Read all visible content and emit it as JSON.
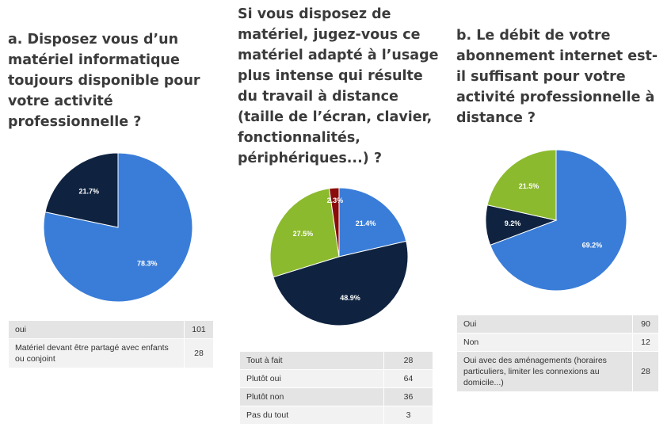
{
  "colors": {
    "blue": "#3a7dd8",
    "navy": "#0f2340",
    "green": "#8cba2e",
    "red": "#8b0c0c"
  },
  "chart_data": [
    {
      "type": "pie",
      "title": "a. Disposez vous d’un\nmatériel informatique\ntoujours disponible pour\nvotre activité\nprofessionnelle ?",
      "slices": [
        {
          "label": "oui",
          "count": "101",
          "value": 78.3,
          "value_label": "78.3%",
          "color": "#3a7dd8"
        },
        {
          "label": "Matériel devant être partagé avec enfants ou conjoint",
          "count": "28",
          "value": 21.7,
          "value_label": "21.7%",
          "color": "#0f2340"
        }
      ]
    },
    {
      "type": "pie",
      "title": "Si vous disposez de\nmatériel, jugez-vous ce\nmatériel adapté à l’usage\nplus intense qui résulte\ndu travail à distance\n(taille de l’écran, clavier,\nfonctionnalités,\npériphériques...) ?",
      "slices": [
        {
          "label": "Tout à fait",
          "count": "28",
          "value": 21.4,
          "value_label": "21.4%",
          "color": "#3a7dd8"
        },
        {
          "label": "Plutôt oui",
          "count": "64",
          "value": 48.9,
          "value_label": "48.9%",
          "color": "#0f2340"
        },
        {
          "label": "Plutôt non",
          "count": "36",
          "value": 27.5,
          "value_label": "27.5%",
          "color": "#8cba2e"
        },
        {
          "label": "Pas du tout",
          "count": "3",
          "value": 2.3,
          "value_label": "2.3%",
          "color": "#8b0c0c"
        }
      ]
    },
    {
      "type": "pie",
      "title": "b. Le débit de votre\nabonnement internet est-\nil suffisant pour votre\nactivité professionnelle à\ndistance ?",
      "slices": [
        {
          "label": "Oui",
          "count": "90",
          "value": 69.2,
          "value_label": "69.2%",
          "color": "#3a7dd8"
        },
        {
          "label": "Non",
          "count": "12",
          "value": 9.2,
          "value_label": "9.2%",
          "color": "#0f2340"
        },
        {
          "label": "Oui avec des aménagements (horaires particuliers, limiter les connexions au domicile...)",
          "count": "28",
          "value": 21.5,
          "value_label": "21.5%",
          "color": "#8cba2e"
        }
      ]
    }
  ]
}
